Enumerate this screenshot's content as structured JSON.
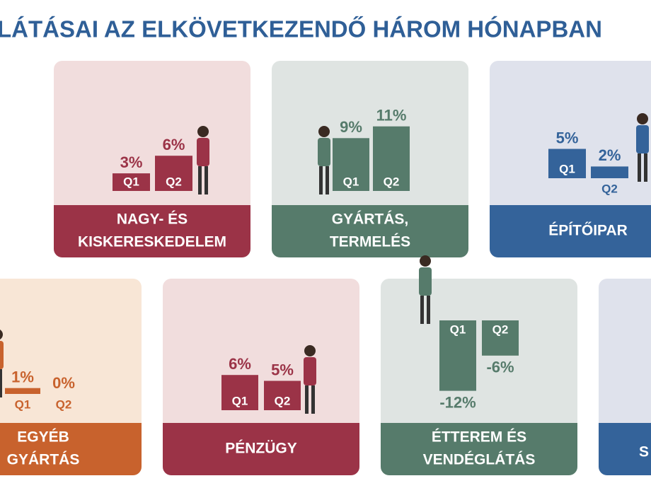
{
  "title": "LÁTÁSAI AZ ELKÖVETKEZENDŐ HÁROM HÓNAPBAN",
  "edge_text": "S",
  "chart_data": [
    {
      "type": "bar",
      "title": [
        "NAGY- ÉS",
        "KISKERESKEDELEM"
      ],
      "categories": [
        "Q1",
        "Q2"
      ],
      "values": [
        3,
        6
      ],
      "value_labels": [
        "3%",
        "6%"
      ],
      "color": "#9b3347",
      "background": "#f1dddd"
    },
    {
      "type": "bar",
      "title": [
        "GYÁRTÁS,",
        "TERMELÉS"
      ],
      "categories": [
        "Q1",
        "Q2"
      ],
      "values": [
        9,
        11
      ],
      "value_labels": [
        "9%",
        "11%"
      ],
      "color": "#567b6b",
      "background": "#dfe4e2"
    },
    {
      "type": "bar",
      "title": [
        "ÉPÍTŐIPAR"
      ],
      "categories": [
        "Q1",
        "Q2"
      ],
      "values": [
        5,
        2
      ],
      "value_labels": [
        "5%",
        "2%"
      ],
      "color": "#34639a",
      "background": "#dfe2ec"
    },
    {
      "type": "bar",
      "title": [
        "EGYÉB",
        "GYÁRTÁS"
      ],
      "categories": [
        "Q1",
        "Q2"
      ],
      "values": [
        1,
        0
      ],
      "value_labels": [
        "1%",
        "0%"
      ],
      "color": "#c8622d",
      "background": "#f8e6d6"
    },
    {
      "type": "bar",
      "title": [
        "PÉNZÜGY"
      ],
      "categories": [
        "Q1",
        "Q2"
      ],
      "values": [
        6,
        5
      ],
      "value_labels": [
        "6%",
        "5%"
      ],
      "color": "#9b3347",
      "background": "#f1dddd"
    },
    {
      "type": "bar",
      "title": [
        "ÉTTEREM ÉS",
        "VENDÉGLÁTÁS"
      ],
      "categories": [
        "Q1",
        "Q2"
      ],
      "values": [
        -12,
        -6
      ],
      "value_labels": [
        "-12%",
        "-6%"
      ],
      "color": "#567b6b",
      "background": "#dfe4e2"
    }
  ]
}
